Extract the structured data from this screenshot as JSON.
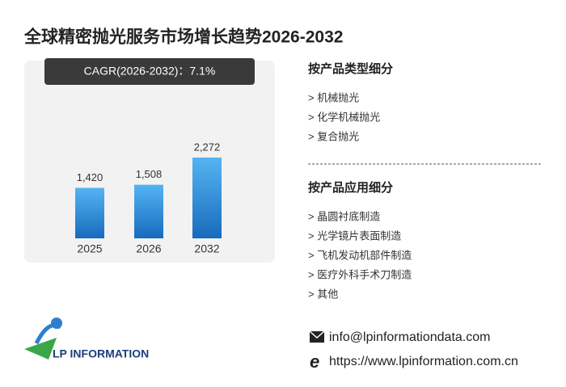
{
  "title": "全球精密抛光服务市场增长趋势2026-2032",
  "chart_data": {
    "type": "bar",
    "subtitle": "CAGR(2026-2032)：7.1%",
    "categories": [
      "2025",
      "2026",
      "2032"
    ],
    "values": [
      1420,
      1508,
      2272
    ],
    "value_labels": [
      "1,420",
      "1,508",
      "2,272"
    ],
    "color": "#2f8fdc"
  },
  "segments": [
    {
      "heading": "按产品类型细分",
      "items": [
        "> 机械抛光",
        "> 化学机械抛光",
        "> 复合抛光"
      ]
    },
    {
      "heading": "按产品应用细分",
      "items": [
        "> 晶圆衬底制造",
        "> 光学镜片表面制造",
        "> 飞机发动机部件制造",
        "> 医疗外科手术刀制造",
        "> 其他"
      ]
    }
  ],
  "contact": {
    "email": "info@lpinformationdata.com",
    "website": "https://www.lpinformation.com.cn"
  },
  "logo": "LP INFORMATION"
}
